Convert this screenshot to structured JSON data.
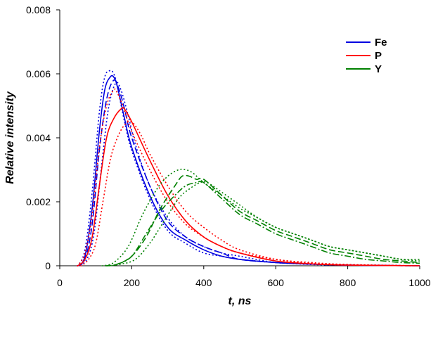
{
  "chart_data": {
    "type": "line",
    "title": "",
    "xlabel": "t, ns",
    "ylabel": "Relative intensity",
    "xlim": [
      0,
      1000
    ],
    "ylim": [
      0,
      0.008
    ],
    "x_ticks": [
      "0",
      "200",
      "400",
      "600",
      "800",
      "1000"
    ],
    "y_ticks": [
      "0",
      "0.002",
      "0.004",
      "0.006",
      "0.008"
    ],
    "grid": false,
    "legend_position": "top-right",
    "legend": [
      {
        "name": "Fe",
        "color": "#0000e0"
      },
      {
        "name": "P",
        "color": "#ff0000"
      },
      {
        "name": "Y",
        "color": "#008000"
      }
    ],
    "series": [
      {
        "name": "Fe",
        "color": "#0000e0",
        "dash": "solid",
        "x": [
          50,
          70,
          90,
          110,
          125,
          140,
          150,
          160,
          180,
          200,
          250,
          300,
          350,
          400,
          450,
          500,
          600,
          700,
          800,
          1000
        ],
        "y": [
          0,
          0.0003,
          0.0018,
          0.0042,
          0.0055,
          0.0059,
          0.0059,
          0.0056,
          0.0046,
          0.0037,
          0.0022,
          0.0012,
          0.0008,
          0.0005,
          0.0003,
          0.0002,
          0.0001,
          5e-05,
          2e-05,
          0
        ]
      },
      {
        "name": "Fe",
        "color": "#0000e0",
        "dash": "dot",
        "x": [
          50,
          70,
          90,
          110,
          125,
          140,
          150,
          160,
          180,
          200,
          250,
          300,
          350,
          400,
          450,
          500,
          600,
          700,
          800,
          1000
        ],
        "y": [
          0,
          0.0005,
          0.0023,
          0.0048,
          0.0059,
          0.0061,
          0.006,
          0.0056,
          0.0045,
          0.0036,
          0.0021,
          0.0011,
          0.0007,
          0.0004,
          0.0003,
          0.0002,
          0.0001,
          4e-05,
          2e-05,
          0
        ]
      },
      {
        "name": "Fe",
        "color": "#0000e0",
        "dash": "dash",
        "x": [
          50,
          70,
          90,
          110,
          130,
          150,
          165,
          180,
          200,
          250,
          300,
          350,
          400,
          450,
          500,
          600,
          700,
          800,
          1000
        ],
        "y": [
          0,
          0.0002,
          0.0013,
          0.0036,
          0.0052,
          0.0058,
          0.0055,
          0.0049,
          0.004,
          0.0025,
          0.0014,
          0.0009,
          0.0006,
          0.0004,
          0.0002,
          0.0001,
          5e-05,
          2e-05,
          0
        ]
      },
      {
        "name": "Fe",
        "color": "#0000e0",
        "dash": "dot",
        "x": [
          50,
          75,
          95,
          115,
          135,
          155,
          170,
          190,
          210,
          250,
          300,
          350,
          400,
          450,
          500,
          600,
          700,
          800,
          1000
        ],
        "y": [
          0,
          0.0002,
          0.001,
          0.003,
          0.0049,
          0.0057,
          0.0055,
          0.0047,
          0.0038,
          0.0025,
          0.0015,
          0.0009,
          0.0006,
          0.0004,
          0.0003,
          0.0001,
          6e-05,
          3e-05,
          0
        ]
      },
      {
        "name": "P",
        "color": "#ff0000",
        "dash": "solid",
        "x": [
          50,
          70,
          90,
          110,
          130,
          150,
          170,
          180,
          200,
          250,
          300,
          350,
          400,
          450,
          500,
          600,
          700,
          800,
          1000
        ],
        "y": [
          0,
          0.0002,
          0.0009,
          0.0025,
          0.004,
          0.0046,
          0.0049,
          0.0049,
          0.0045,
          0.0033,
          0.0022,
          0.0014,
          0.0009,
          0.0006,
          0.0004,
          0.00015,
          6e-05,
          2e-05,
          0
        ]
      },
      {
        "name": "P",
        "color": "#ff0000",
        "dash": "dot",
        "x": [
          50,
          70,
          90,
          110,
          130,
          150,
          160,
          175,
          200,
          250,
          300,
          350,
          400,
          450,
          500,
          600,
          700,
          800,
          1000
        ],
        "y": [
          0,
          0.0004,
          0.0016,
          0.0037,
          0.005,
          0.0055,
          0.0054,
          0.005,
          0.0042,
          0.003,
          0.002,
          0.0013,
          0.0009,
          0.0006,
          0.0004,
          0.0002,
          8e-05,
          3e-05,
          0
        ]
      },
      {
        "name": "P",
        "color": "#ff0000",
        "dash": "dot",
        "x": [
          60,
          80,
          100,
          120,
          140,
          160,
          180,
          200,
          225,
          250,
          300,
          350,
          400,
          450,
          500,
          600,
          700,
          800,
          1000
        ],
        "y": [
          0,
          0.0002,
          0.0007,
          0.002,
          0.0033,
          0.004,
          0.0044,
          0.0045,
          0.0041,
          0.0035,
          0.0025,
          0.0017,
          0.0012,
          0.0008,
          0.0005,
          0.0002,
          0.0001,
          4e-05,
          0
        ]
      },
      {
        "name": "Y",
        "color": "#008000",
        "dash": "dashdot",
        "x": [
          130,
          160,
          200,
          240,
          280,
          320,
          350,
          380,
          400,
          450,
          500,
          550,
          600,
          650,
          700,
          750,
          800,
          850,
          900,
          950,
          1000
        ],
        "y": [
          0,
          5e-05,
          0.0003,
          0.001,
          0.0017,
          0.0022,
          0.0025,
          0.0026,
          0.0026,
          0.0021,
          0.0016,
          0.0013,
          0.001,
          0.0008,
          0.0006,
          0.0004,
          0.0003,
          0.0002,
          0.00015,
          0.0001,
          8e-05
        ]
      },
      {
        "name": "Y",
        "color": "#008000",
        "dash": "dash",
        "x": [
          130,
          160,
          200,
          240,
          280,
          320,
          340,
          360,
          380,
          400,
          450,
          500,
          550,
          600,
          650,
          700,
          750,
          800,
          850,
          900,
          950,
          1000
        ],
        "y": [
          0,
          5e-05,
          0.0003,
          0.0009,
          0.0018,
          0.0025,
          0.0028,
          0.0028,
          0.0027,
          0.0027,
          0.0022,
          0.0017,
          0.0014,
          0.0011,
          0.0009,
          0.0007,
          0.0005,
          0.0004,
          0.0003,
          0.0002,
          0.00015,
          0.0001
        ]
      },
      {
        "name": "Y",
        "color": "#008000",
        "dash": "dot",
        "x": [
          120,
          150,
          190,
          230,
          270,
          300,
          330,
          350,
          370,
          400,
          450,
          500,
          550,
          600,
          650,
          700,
          750,
          800,
          850,
          900,
          950,
          1000
        ],
        "y": [
          0,
          0.0001,
          0.0006,
          0.0016,
          0.0024,
          0.0028,
          0.003,
          0.003,
          0.0029,
          0.0026,
          0.0022,
          0.0018,
          0.0015,
          0.0012,
          0.001,
          0.0008,
          0.0006,
          0.0005,
          0.0004,
          0.0003,
          0.0002,
          0.00015
        ]
      },
      {
        "name": "Y",
        "color": "#008000",
        "dash": "dot",
        "x": [
          140,
          170,
          210,
          250,
          290,
          330,
          360,
          390,
          410,
          450,
          500,
          550,
          600,
          650,
          700,
          750,
          800,
          850,
          900,
          950,
          1000
        ],
        "y": [
          0,
          5e-05,
          0.0002,
          0.0007,
          0.0014,
          0.0021,
          0.0024,
          0.0026,
          0.0026,
          0.0023,
          0.0019,
          0.0015,
          0.0012,
          0.001,
          0.0008,
          0.0006,
          0.0005,
          0.0004,
          0.0003,
          0.0002,
          0.0002
        ]
      }
    ]
  }
}
